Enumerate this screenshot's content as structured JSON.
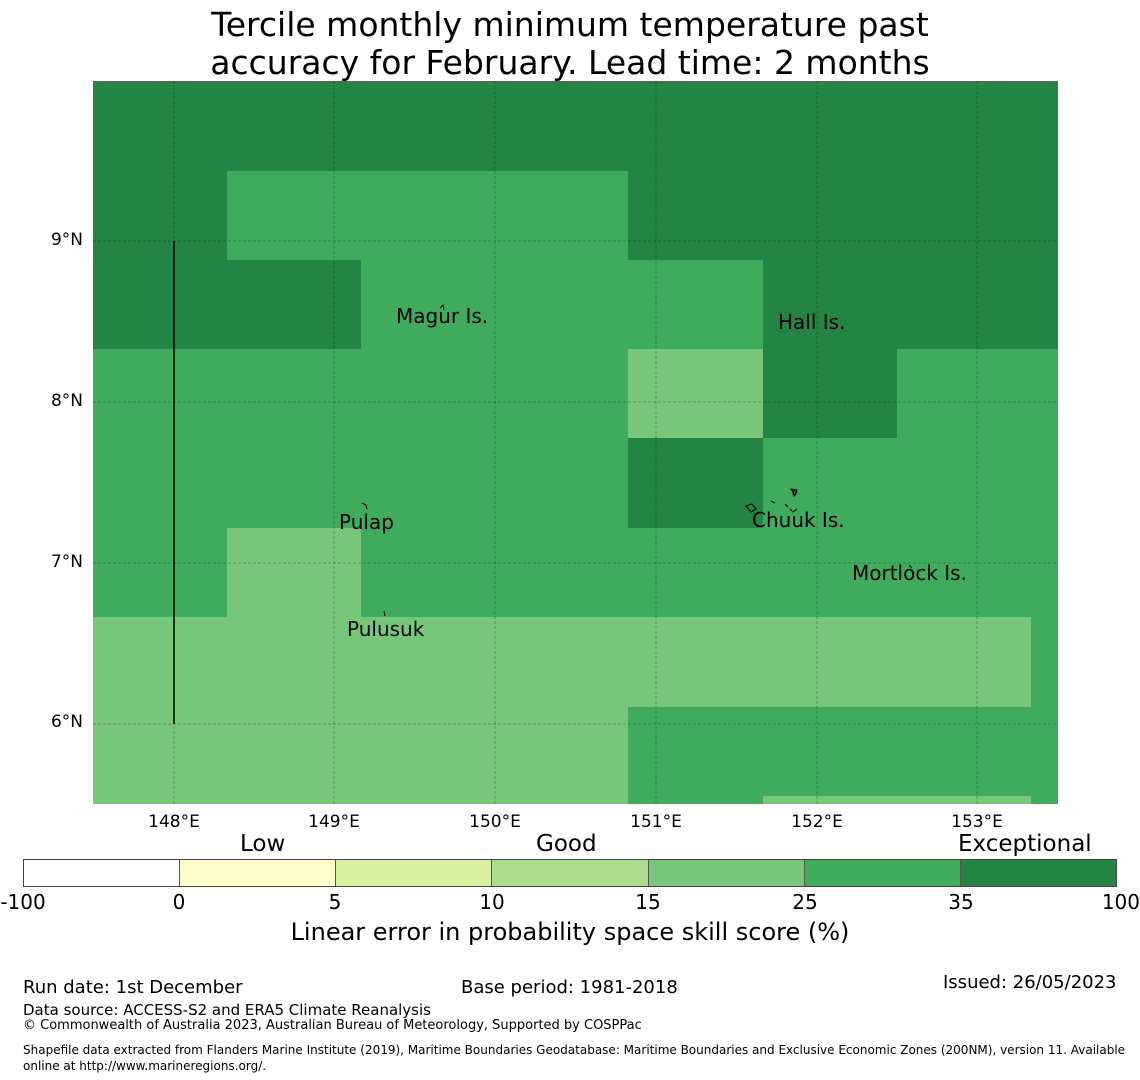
{
  "title": {
    "line1": "Tercile monthly minimum temperature past",
    "line2": "accuracy for February. Lead time: 2 months"
  },
  "map": {
    "lat_labels": [
      "9°N",
      "8°N",
      "7°N",
      "6°N"
    ],
    "lon_labels": [
      "148°E",
      "149°E",
      "150°E",
      "151°E",
      "152°E",
      "153°E"
    ],
    "places": [
      "Magur Is.",
      "Hall Is.",
      "Pulap",
      "Chuuk Is.",
      "Mortlock Is.",
      "Pulusuk"
    ],
    "colors": {
      "exceptional": "#238443",
      "very_good": "#41ab5d",
      "good": "#78c679"
    }
  },
  "legend": {
    "categories": [
      "Low",
      "Good",
      "Exceptional"
    ],
    "ticks": [
      "-100",
      "0",
      "5",
      "10",
      "15",
      "25",
      "35",
      "100"
    ],
    "colors": [
      "#ffffff",
      "#ffffcc",
      "#d9f0a3",
      "#addd8e",
      "#78c679",
      "#41ab5d",
      "#238443"
    ],
    "label": "Linear error in probability space skill score (%)"
  },
  "footer": {
    "run_date": "Run date: 1st December",
    "base_period": "Base period: 1981-2018",
    "issued": "Issued: 26/05/2023",
    "data_source": "Data source: ACCESS-S2 and ERA5 Climate Reanalysis",
    "copyright": "© Commonwealth of Australia 2023, Australian Bureau of Meteorology, Supported by COSPPac",
    "shapefile": "Shapefile data extracted from Flanders Marine Institute (2019), Maritime Boundaries Geodatabase: Maritime Boundaries and Exclusive Economic Zones (200NM), version 11. Available online at http://www.marineregions.org/."
  }
}
